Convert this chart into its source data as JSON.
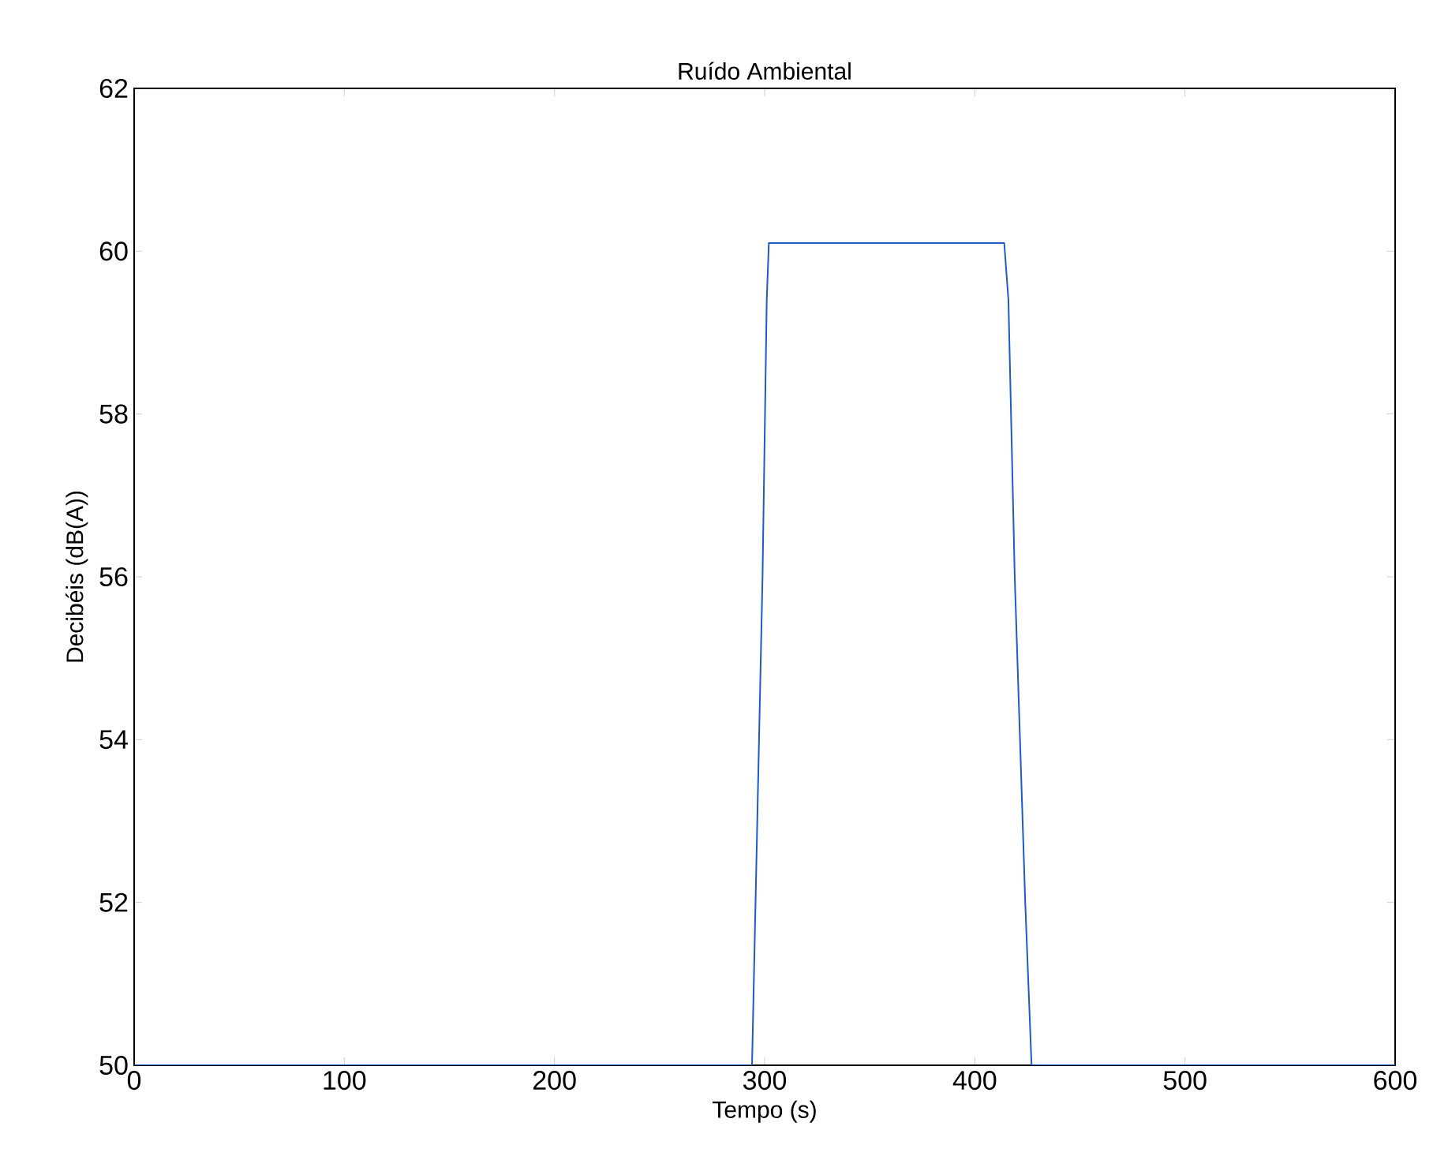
{
  "chart_data": {
    "type": "line",
    "title": "Ruído Ambiental",
    "xlabel": "Tempo (s)",
    "ylabel": "Decibéis (dB(A))",
    "xlim": [
      0,
      600
    ],
    "ylim": [
      50,
      62
    ],
    "xticks": [
      0,
      100,
      200,
      300,
      400,
      500,
      600
    ],
    "yticks": [
      50,
      52,
      54,
      56,
      58,
      60,
      62
    ],
    "series": [
      {
        "color": "#1c5cc8",
        "x": [
          0,
          294,
          299,
          301,
          302,
          414,
          416,
          419,
          424,
          427,
          600
        ],
        "values": [
          50,
          50,
          56,
          59.4,
          60.1,
          60.1,
          59.4,
          56,
          52,
          50,
          50
        ]
      }
    ]
  }
}
